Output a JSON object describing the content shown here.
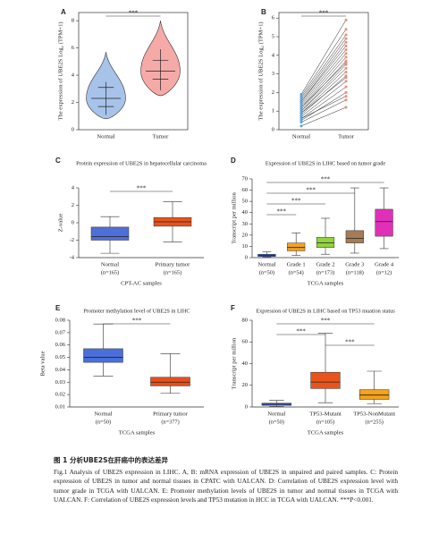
{
  "chart_data": [
    {
      "type": "violin",
      "letter": "A",
      "ylabel": "The expression of UBE2S Log₂ (TPM+1)",
      "categories": [
        "Normal",
        "Tumor"
      ],
      "ylim": [
        0,
        8.6
      ],
      "yticks": [
        0,
        2,
        4,
        6,
        8
      ],
      "boxes": [
        {
          "color": "#a8c3ea",
          "min": 0.8,
          "max": 5.7,
          "lo": 1.1,
          "q1": 1.7,
          "median": 2.3,
          "q3": 3.1,
          "hi": 3.5
        },
        {
          "color": "#f5aaa8",
          "min": 2.5,
          "max": 8.0,
          "lo": 2.9,
          "q1": 3.7,
          "median": 4.3,
          "q3": 5.1,
          "hi": 5.9
        }
      ],
      "comparisons": [
        {
          "pair": [
            "Normal",
            "Tumor"
          ],
          "label": "***"
        }
      ]
    },
    {
      "type": "paired",
      "letter": "B",
      "ylabel": "The expression of UBE2S Log₂ (TPM+1)",
      "categories": [
        "Normal",
        "Tumor"
      ],
      "ylim": [
        0,
        6.3
      ],
      "yticks": [
        0,
        1,
        2,
        3,
        4,
        5,
        6
      ],
      "colors": [
        "#5fa3d9",
        "#f08a7a"
      ],
      "normal": [
        0.2,
        0.4,
        0.5,
        0.6,
        0.7,
        0.8,
        0.9,
        1.0,
        1.0,
        1.1,
        1.2,
        1.3,
        1.4,
        1.5,
        1.5,
        1.6,
        1.7,
        1.8,
        1.9,
        0.9,
        1.2,
        0.6
      ],
      "tumor": [
        1.2,
        1.6,
        2.0,
        2.3,
        2.6,
        2.9,
        3.1,
        3.3,
        3.5,
        3.7,
        3.9,
        4.1,
        4.3,
        4.5,
        4.7,
        4.9,
        5.1,
        5.4,
        5.9,
        2.8,
        3.6,
        1.8
      ],
      "comparisons": [
        {
          "pair": [
            "Normal",
            "Tumor"
          ],
          "label": "***"
        }
      ]
    },
    {
      "type": "box",
      "letter": "C",
      "title": "Protein expression of UBE2S in hepatocellular carcinoma",
      "ylabel": "Z-value",
      "xlabel": "CPT-AC samples",
      "categories": [
        "Normal",
        "Primary tumor"
      ],
      "n_labels": [
        "(n=165)",
        "(n=165)"
      ],
      "ylim": [
        -4,
        4
      ],
      "yticks": [
        -4,
        -2,
        0,
        2,
        4
      ],
      "boxes": [
        {
          "color": "#4e6fd8",
          "min": -3.5,
          "q1": -2.0,
          "median": -1.6,
          "q3": -0.5,
          "max": 0.7
        },
        {
          "color": "#e8541c",
          "min": -2.2,
          "q1": -0.4,
          "median": 0.1,
          "q3": 0.6,
          "max": 2.4
        }
      ],
      "comparisons": [
        {
          "pair": [
            "Normal",
            "Primary tumor"
          ],
          "label": "***"
        }
      ]
    },
    {
      "type": "box",
      "letter": "D",
      "title": "Expression of UBE2S in LIHC based on tumor grade",
      "ylabel": "Transcript per million",
      "xlabel": "TCGA samples",
      "categories": [
        "Normal",
        "Grade 1",
        "Grade 2",
        "Grade 3",
        "Grade 4"
      ],
      "n_labels": [
        "(n=50)",
        "(n=54)",
        "(n=173)",
        "(n=118)",
        "(n=12)"
      ],
      "ylim": [
        0,
        70
      ],
      "yticks": [
        0,
        10,
        20,
        30,
        40,
        50,
        60,
        70
      ],
      "boxes": [
        {
          "color": "#3c5fd0",
          "min": 0.5,
          "q1": 1,
          "median": 2,
          "q3": 3,
          "max": 5
        },
        {
          "color": "#f5a21c",
          "min": 2,
          "q1": 6,
          "median": 9,
          "q3": 13,
          "max": 22
        },
        {
          "color": "#8fd43c",
          "min": 3,
          "q1": 9,
          "median": 13,
          "q3": 18,
          "max": 35
        },
        {
          "color": "#a67c55",
          "min": 4,
          "q1": 13,
          "median": 17,
          "q3": 24,
          "max": 62
        },
        {
          "color": "#e030b8",
          "min": 8,
          "q1": 19,
          "median": 32,
          "q3": 43,
          "max": 62
        }
      ],
      "comparisons": [
        {
          "pair": [
            "Normal",
            "Grade 1"
          ],
          "label": "***"
        },
        {
          "pair": [
            "Normal",
            "Grade 2"
          ],
          "label": "***"
        },
        {
          "pair": [
            "Normal",
            "Grade 3"
          ],
          "label": "***"
        },
        {
          "pair": [
            "Normal",
            "Grade 4"
          ],
          "label": "***"
        }
      ]
    },
    {
      "type": "box",
      "letter": "E",
      "title": "Promoter methylation level of UBE2S in LIHC",
      "ylabel": "Beta value",
      "xlabel": "TCGA samples",
      "categories": [
        "Normal",
        "Primary tumor"
      ],
      "n_labels": [
        "(n=50)",
        "(n=377)"
      ],
      "ylim": [
        0.01,
        0.08
      ],
      "yticks": [
        0.01,
        0.02,
        0.03,
        0.04,
        0.05,
        0.06,
        0.07,
        0.08
      ],
      "boxes": [
        {
          "color": "#4a6fd8",
          "min": 0.035,
          "q1": 0.046,
          "median": 0.05,
          "q3": 0.057,
          "max": 0.077
        },
        {
          "color": "#e84d1a",
          "min": 0.021,
          "q1": 0.027,
          "median": 0.03,
          "q3": 0.034,
          "max": 0.053
        }
      ],
      "comparisons": [
        {
          "pair": [
            "Normal",
            "Primary tumor"
          ],
          "label": "***"
        }
      ]
    },
    {
      "type": "box",
      "letter": "F",
      "title": "Expression of UBE2S in LIHC based on TP53 muation status",
      "ylabel": "Transcript per million",
      "xlabel": "TCGA samples",
      "categories": [
        "Normal",
        "TP53-Mutant",
        "TP53-NonMutant"
      ],
      "n_labels": [
        "(n=50)",
        "(n=105)",
        "(n=255)"
      ],
      "ylim": [
        0,
        80
      ],
      "yticks": [
        0,
        20,
        40,
        60,
        80
      ],
      "boxes": [
        {
          "color": "#3c5fd0",
          "min": 0.5,
          "q1": 1.5,
          "median": 2.5,
          "q3": 3.5,
          "max": 6
        },
        {
          "color": "#e8541c",
          "min": 4,
          "q1": 17,
          "median": 23,
          "q3": 32,
          "max": 68
        },
        {
          "color": "#f5a21c",
          "min": 3,
          "q1": 7,
          "median": 11,
          "q3": 16,
          "max": 33
        }
      ],
      "comparisons": [
        {
          "pair": [
            "TP53-Mutant",
            "TP53-NonMutant"
          ],
          "label": "***"
        },
        {
          "pair": [
            "Normal",
            "TP53-Mutant"
          ],
          "label": "***"
        },
        {
          "pair": [
            "Normal",
            "TP53-NonMutant"
          ],
          "label": "***"
        }
      ]
    }
  ],
  "caption": {
    "heading": "图 1  分析UBE2S在肝癌中的表达差异",
    "text": "Fig.1  Analysis of UBE2S expression in LIHC. A, B: mRNA expression of UBE2S in unpaired and paired samples. C: Protein expression of UBE2S in tumor and normal tissues in CPATC with UALCAN. D: Correlation of UBE2S expression level with tumor grade in TCGA with UALCAN. E: Promoter methylation levels of UBE2S in tumor and normal tissues in TCGA with UALCAN. F: Correlation of UBE2S expression levels and TP53 mutation in HCC in TCGA with UALCAN. ***P<0.001."
  }
}
